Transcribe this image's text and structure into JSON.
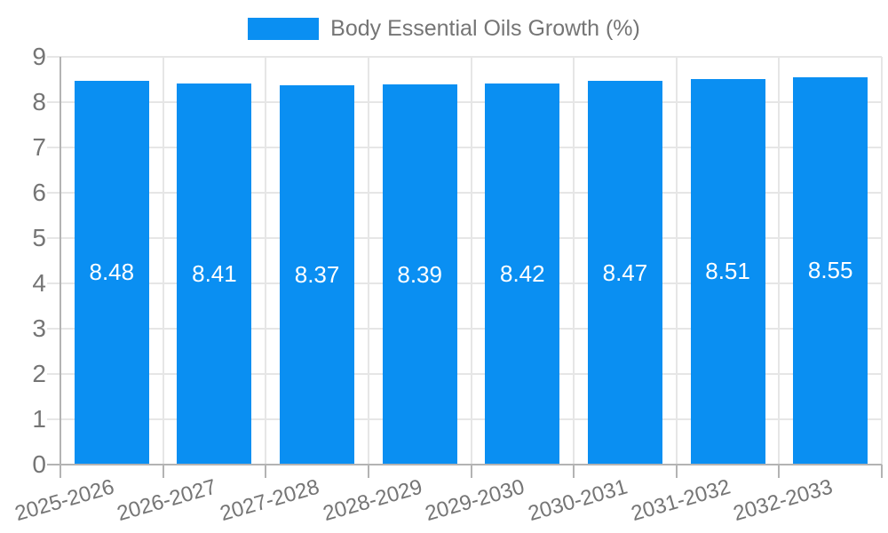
{
  "legend": {
    "label": "Body Essential Oils Growth (%)"
  },
  "colors": {
    "bar": "#0a8ff2",
    "bar_label": "#ffffff",
    "grid": "#e6e6e6",
    "axis": "#b3b3b3",
    "text": "#757575",
    "background": "#ffffff"
  },
  "chart_data": {
    "type": "bar",
    "title": "Body Essential Oils Growth (%)",
    "categories": [
      "2025-2026",
      "2026-2027",
      "2027-2028",
      "2028-2029",
      "2029-2030",
      "2030-2031",
      "2031-2032",
      "2032-2033"
    ],
    "values": [
      8.48,
      8.41,
      8.37,
      8.39,
      8.42,
      8.47,
      8.51,
      8.55
    ],
    "xlabel": "",
    "ylabel": "",
    "ylim": [
      0,
      9
    ],
    "yticks": [
      0,
      1,
      2,
      3,
      4,
      5,
      6,
      7,
      8,
      9
    ],
    "grid": true,
    "legend_position": "top-center",
    "x_tick_rotation_deg": -16,
    "bar_value_labels": "inside-center-white",
    "value_label_decimals": 2
  }
}
